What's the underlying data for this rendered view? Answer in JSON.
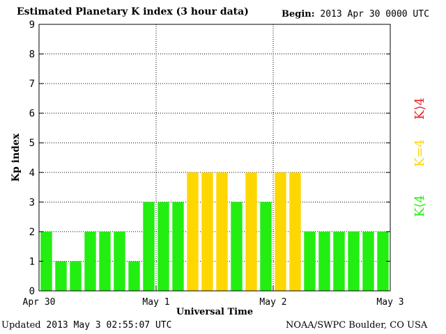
{
  "header": {
    "title": "Estimated Planetary K index (3 hour data)",
    "begin_label": "Begin:",
    "begin_value": "2013 Apr 30 0000 UTC"
  },
  "footer": {
    "updated_label": "Updated",
    "updated_value": "2013 May  3 02:55:07 UTC",
    "source": "NOAA/SWPC Boulder, CO USA"
  },
  "legend": {
    "high": "K⟩4",
    "equal": "K=4",
    "low": "K⟨4"
  },
  "colors": {
    "low": "#22ee11",
    "equal": "#ffd700",
    "high": "#ee2222",
    "grid": "#000000"
  },
  "chart_data": {
    "type": "bar",
    "xlabel": "Universal Time",
    "ylabel": "Kp index",
    "ylim": [
      0,
      9
    ],
    "yticks": [
      0,
      1,
      2,
      3,
      4,
      5,
      6,
      7,
      8,
      9
    ],
    "xticks": [
      "Apr 30",
      "May 1",
      "May 2",
      "May 3"
    ],
    "grid": "dotted, at each integer Kp and each day boundary",
    "values": [
      2,
      1,
      1,
      2,
      2,
      2,
      1,
      3,
      3,
      3,
      4,
      4,
      4,
      3,
      4,
      3,
      4,
      4,
      2,
      2,
      2,
      2,
      2,
      2
    ]
  }
}
